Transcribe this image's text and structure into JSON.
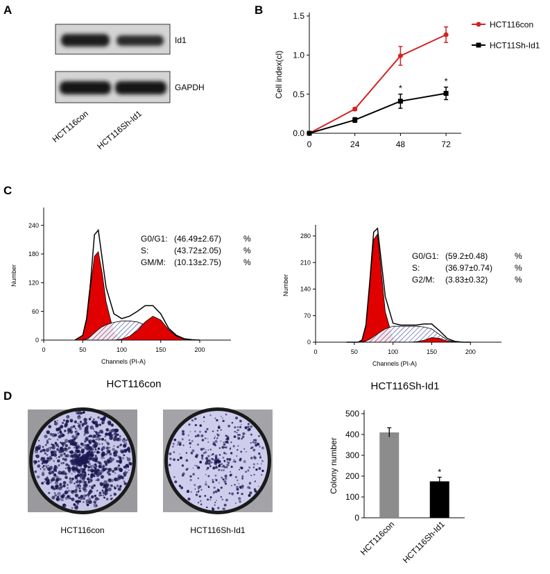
{
  "panel_labels": [
    "A",
    "B",
    "C",
    "D"
  ],
  "western_blot": {
    "bands": [
      "Id1",
      "GAPDH"
    ],
    "lanes": [
      "HCT116con",
      "HCT116Sh-Id1"
    ]
  },
  "colony_plates": {
    "labels": [
      "HCT116con",
      "HCT116Sh-Id1"
    ]
  },
  "chart_data": [
    {
      "type": "line",
      "ylabel": "Cell index(cl)",
      "legend": "right",
      "x": [
        0,
        24,
        48,
        72
      ],
      "xlim": [
        0,
        80
      ],
      "xticks": [
        0,
        24,
        48,
        72
      ],
      "ylim": [
        0,
        1.5
      ],
      "yticks": [
        {
          "value": 0,
          "label": "0.0"
        },
        {
          "value": 0.5,
          "label": "0.5"
        },
        {
          "value": 1,
          "label": "1.0"
        },
        {
          "value": 1.5,
          "label": "1.5"
        }
      ],
      "series": [
        {
          "name": "HCT116con",
          "color": "#d42222",
          "marker": "circle",
          "values": [
            0,
            0.31,
            0.99,
            1.26
          ],
          "errors": [
            0,
            0.02,
            0.12,
            0.1
          ]
        },
        {
          "name": "HCT11Sh-Id1",
          "color": "#000000",
          "marker": "square",
          "values": [
            0,
            0.17,
            0.41,
            0.51
          ],
          "errors": [
            0,
            0.03,
            0.09,
            0.08
          ],
          "significance": [
            null,
            null,
            "*",
            "*"
          ]
        }
      ]
    },
    {
      "type": "area",
      "subtitle": "HCT116con",
      "xlabel": "Channels (PI-A)",
      "ylabel": "Number",
      "x": [
        40,
        50,
        55,
        60,
        65,
        70,
        75,
        80,
        90,
        100,
        110,
        120,
        130,
        140,
        150,
        160,
        170,
        180,
        190,
        200
      ],
      "xlim": [
        0,
        240
      ],
      "xticks": [
        0,
        50,
        100,
        150,
        200
      ],
      "ylim": [
        0,
        270
      ],
      "yticks": [
        0,
        60,
        120,
        180,
        240
      ],
      "series": [
        {
          "color": "#e00000",
          "fill": "solid",
          "values": [
            0,
            10,
            40,
            110,
            175,
            185,
            140,
            80,
            15,
            2,
            0,
            0,
            0,
            0,
            0,
            0,
            0,
            0,
            0,
            0
          ]
        },
        {
          "color": "#2a3a9a",
          "fill": "hatch",
          "values": [
            0,
            0,
            2,
            8,
            15,
            22,
            28,
            32,
            37,
            40,
            40,
            38,
            32,
            22,
            12,
            4,
            1,
            0,
            0,
            0
          ]
        },
        {
          "color": "#e00000",
          "fill": "solid",
          "values": [
            0,
            0,
            0,
            0,
            0,
            0,
            0,
            0,
            0,
            2,
            8,
            20,
            38,
            50,
            42,
            22,
            8,
            2,
            0,
            0
          ]
        },
        {
          "color": "#000000",
          "fill": "none",
          "values": [
            0,
            10,
            45,
            120,
            220,
            230,
            170,
            110,
            55,
            45,
            50,
            60,
            72,
            72,
            55,
            25,
            10,
            3,
            1,
            0
          ]
        }
      ],
      "annotations": [
        {
          "label": "G0/G1:",
          "value": "(46.49±2.67)",
          "unit": "%"
        },
        {
          "label": "S:",
          "value": "(43.72±2.05)",
          "unit": "%"
        },
        {
          "label": "GM/M:",
          "value": "(10.13±2.75)",
          "unit": "%"
        }
      ]
    },
    {
      "type": "area",
      "subtitle": "HCT116Sh-Id1",
      "xlabel": "Channels (PI-A)",
      "ylabel": "Number",
      "x": [
        40,
        50,
        55,
        60,
        65,
        70,
        75,
        80,
        90,
        100,
        110,
        120,
        130,
        140,
        150,
        160,
        170,
        180,
        190,
        200
      ],
      "xlim": [
        0,
        240
      ],
      "xticks": [
        0,
        50,
        100,
        150,
        200
      ],
      "ylim": [
        0,
        300
      ],
      "yticks": [
        0,
        70,
        140,
        210,
        280
      ],
      "series": [
        {
          "color": "#e00000",
          "fill": "solid",
          "values": [
            0,
            0,
            0,
            5,
            40,
            150,
            270,
            285,
            80,
            8,
            1,
            0,
            0,
            0,
            0,
            0,
            0,
            0,
            0,
            0
          ]
        },
        {
          "color": "#2a3a9a",
          "fill": "hatch",
          "values": [
            0,
            0,
            0,
            1,
            3,
            8,
            15,
            22,
            35,
            42,
            42,
            42,
            42,
            40,
            35,
            20,
            6,
            1,
            0,
            0
          ]
        },
        {
          "color": "#e00000",
          "fill": "solid",
          "values": [
            0,
            0,
            0,
            0,
            0,
            0,
            0,
            0,
            0,
            0,
            0,
            0,
            1,
            5,
            12,
            10,
            3,
            0,
            0,
            0
          ]
        },
        {
          "color": "#000000",
          "fill": "none",
          "values": [
            0,
            0,
            0,
            6,
            45,
            160,
            290,
            300,
            120,
            50,
            45,
            45,
            45,
            48,
            48,
            30,
            10,
            2,
            0,
            0
          ]
        }
      ],
      "annotations": [
        {
          "label": "G0/G1:",
          "value": "(59.2±0.48)",
          "unit": "%"
        },
        {
          "label": "S:",
          "value": "(36.97±0.74)",
          "unit": "%"
        },
        {
          "label": "G2/M:",
          "value": "(3.83±0.32)",
          "unit": "%"
        }
      ]
    },
    {
      "type": "bar",
      "ylabel": "Colony number",
      "categories": [
        "HCT116con",
        "HCT116Sh-Id1"
      ],
      "values": [
        410,
        175
      ],
      "errors": [
        22,
        20
      ],
      "colors": [
        "#8c8c8c",
        "#000000"
      ],
      "significance": [
        null,
        "*"
      ],
      "ylim": [
        0,
        500
      ],
      "yticks": [
        0,
        100,
        200,
        300,
        400,
        500
      ]
    }
  ]
}
